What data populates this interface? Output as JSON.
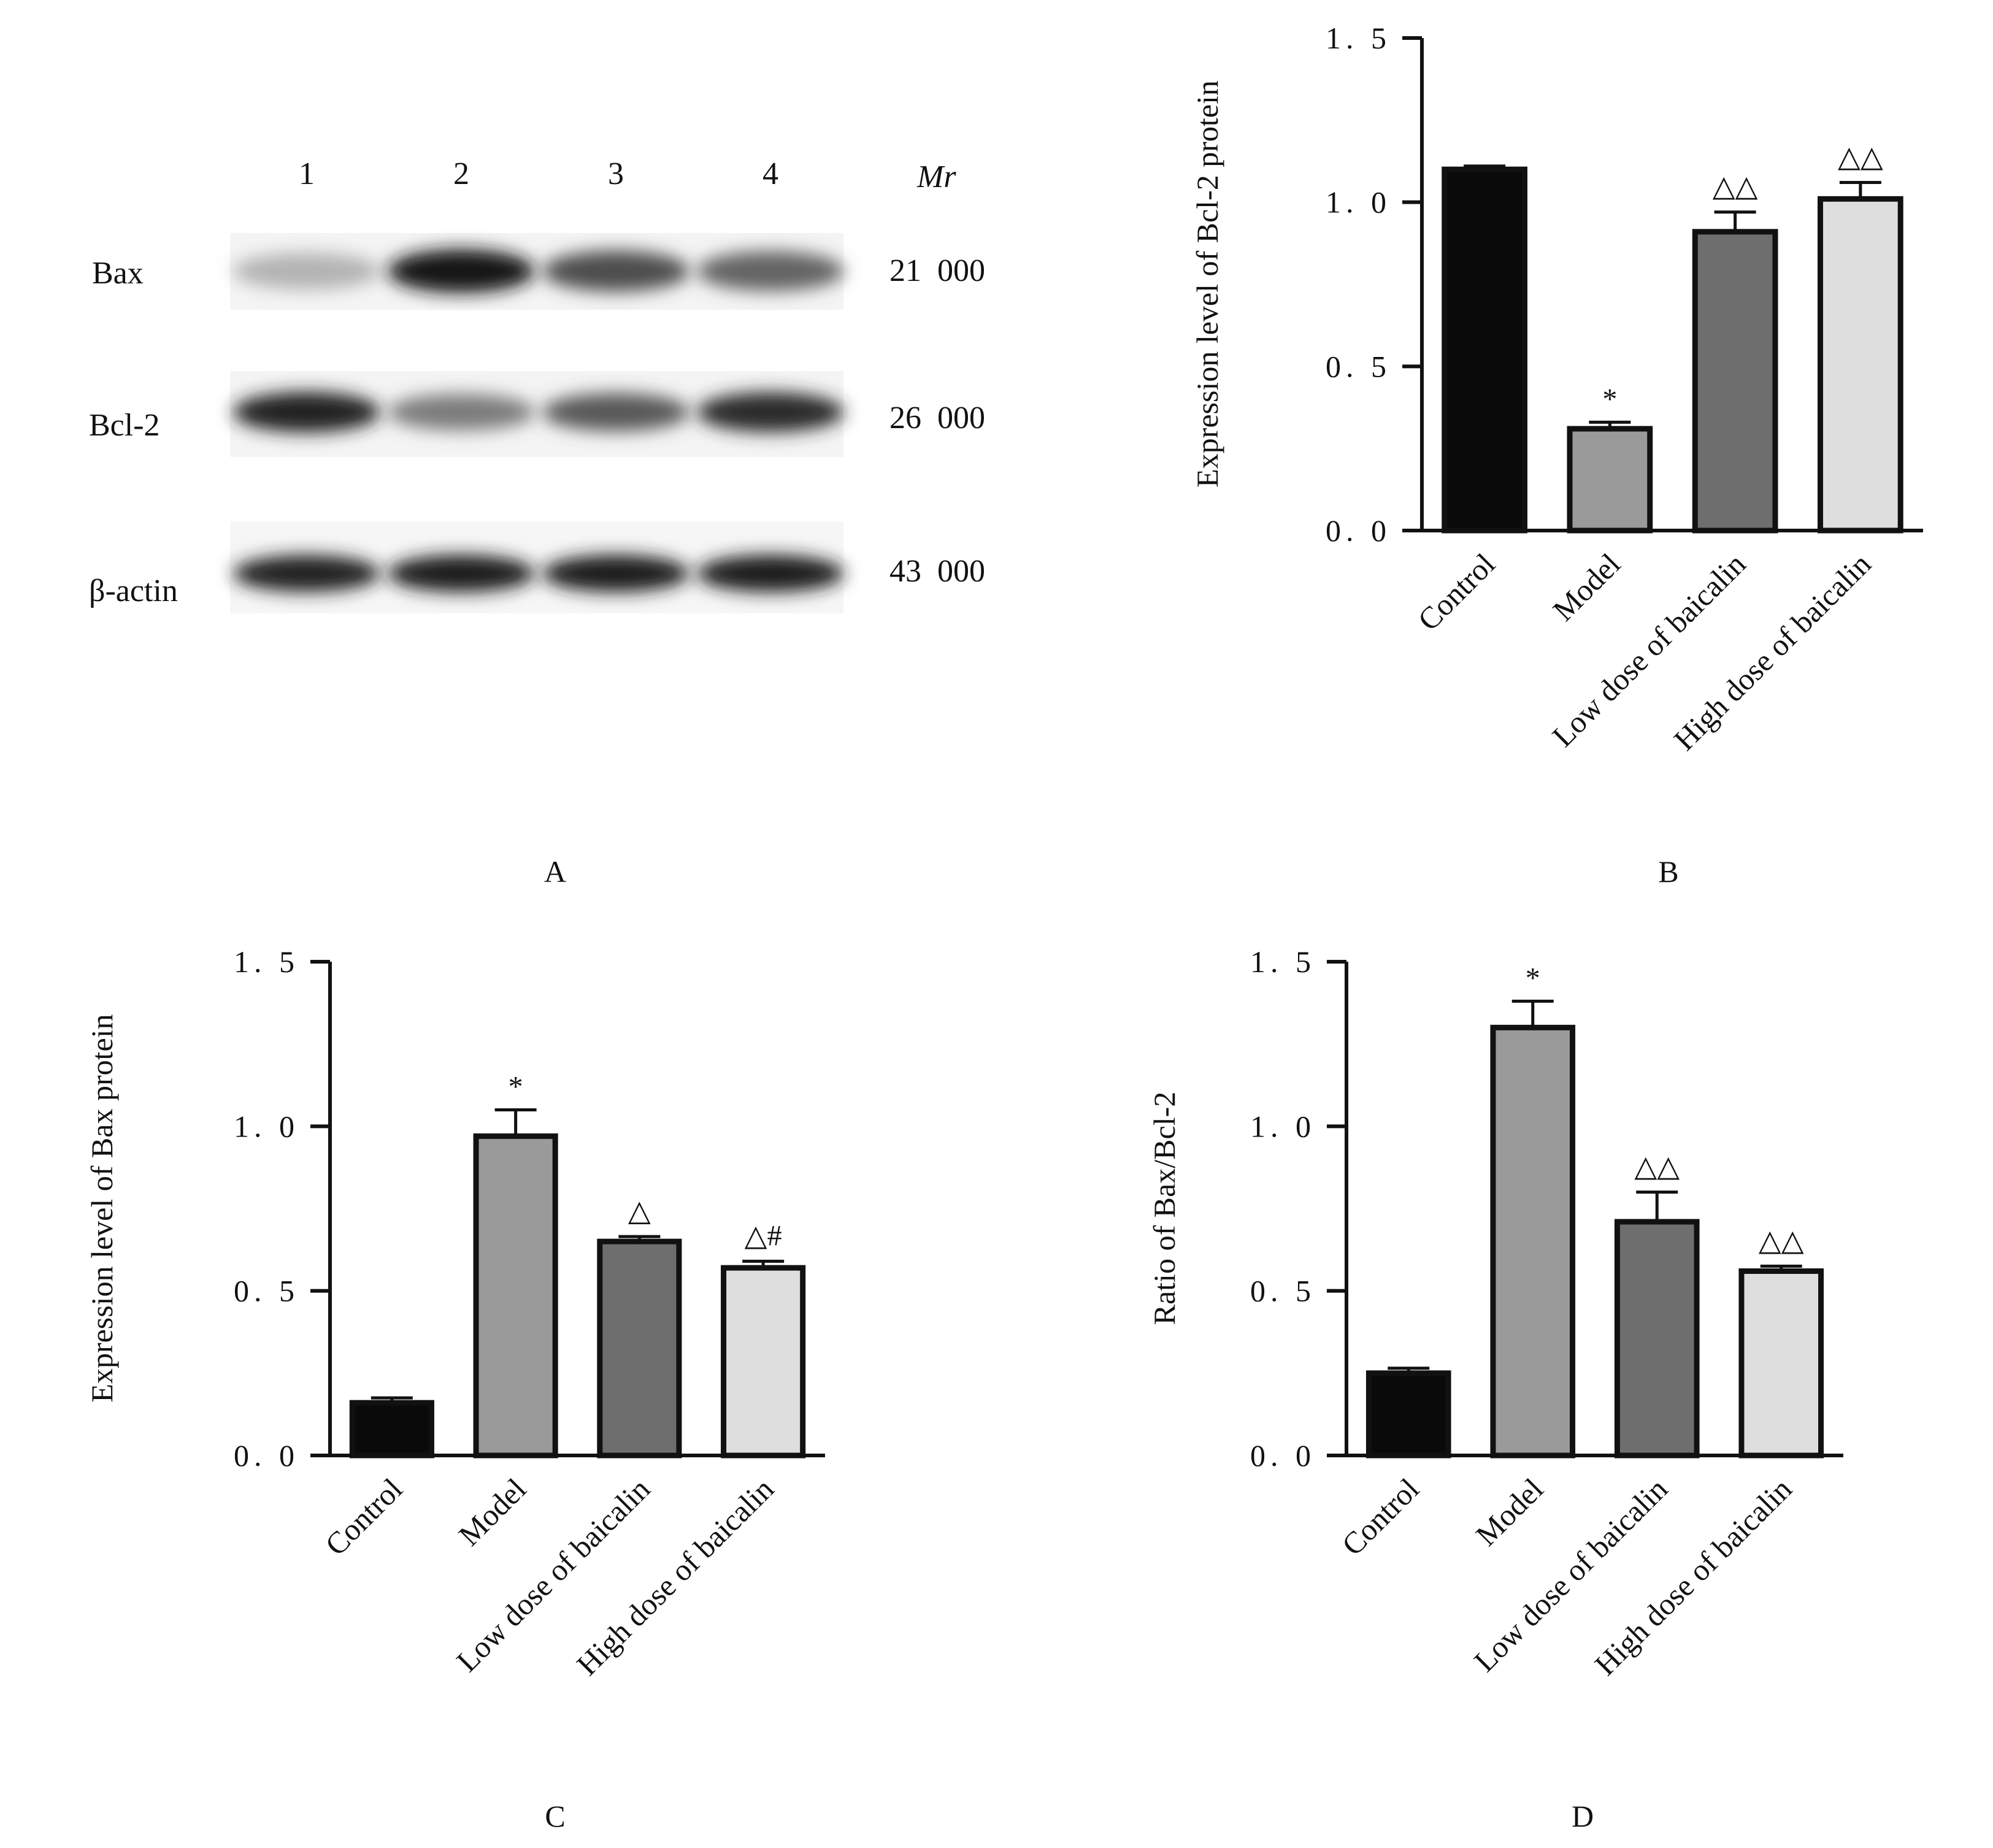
{
  "figure": {
    "panel_labels": [
      "A",
      "B",
      "C",
      "D"
    ]
  },
  "western_blot": {
    "lane_numbers": [
      "1",
      "2",
      "3",
      "4"
    ],
    "mr_header": "Mr",
    "rows": [
      {
        "protein": "Bax",
        "mr": "21  000",
        "intensities": [
          0.25,
          0.95,
          0.7,
          0.6
        ]
      },
      {
        "protein": "Bcl-2",
        "mr": "26  000",
        "intensities": [
          0.9,
          0.5,
          0.65,
          0.85
        ]
      },
      {
        "protein": "β-actin",
        "mr": "43  000",
        "intensities": [
          0.9,
          0.92,
          0.92,
          0.92
        ]
      }
    ]
  },
  "chart_data": [
    {
      "panel": "B",
      "type": "bar",
      "ylabel": "Expression level of  Bcl-2 protein",
      "xlabel": "",
      "title": "",
      "ylim": [
        0,
        1.5
      ],
      "yticks": [
        "0. 0",
        "0. 5",
        "1. 0",
        "1. 5"
      ],
      "categories": [
        "Control",
        "Model",
        "Low dose of baicalin",
        "High dose of baicalin"
      ],
      "values": [
        1.1,
        0.31,
        0.91,
        1.01
      ],
      "errors": [
        0.01,
        0.02,
        0.06,
        0.05
      ],
      "annotations": [
        "",
        "*",
        "△△",
        "△△"
      ],
      "colors": [
        "#0a0a0a",
        "#9a9a9a",
        "#6e6e6e",
        "#dedede"
      ],
      "grid": false
    },
    {
      "panel": "C",
      "type": "bar",
      "ylabel": "Expression level of Bax protein",
      "xlabel": "",
      "title": "",
      "ylim": [
        0,
        1.5
      ],
      "yticks": [
        "0. 0",
        "0. 5",
        "1. 0",
        "1. 5"
      ],
      "categories": [
        "Control",
        "Model",
        "Low dose of baicalin",
        "High dose of baicalin"
      ],
      "values": [
        0.16,
        0.97,
        0.65,
        0.57
      ],
      "errors": [
        0.015,
        0.08,
        0.015,
        0.02
      ],
      "annotations": [
        "",
        "*",
        "△",
        "△#"
      ],
      "colors": [
        "#0a0a0a",
        "#9a9a9a",
        "#6e6e6e",
        "#dedede"
      ],
      "grid": false
    },
    {
      "panel": "D",
      "type": "bar",
      "ylabel": "Ratio of Bax/Bcl-2",
      "xlabel": "",
      "title": "",
      "ylim": [
        0,
        1.5
      ],
      "yticks": [
        "0. 0",
        "0. 5",
        "1. 0",
        "1. 5"
      ],
      "categories": [
        "Control",
        "Model",
        "Low dose of baicalin",
        "High dose of baicalin"
      ],
      "values": [
        0.25,
        1.3,
        0.71,
        0.56
      ],
      "errors": [
        0.015,
        0.08,
        0.09,
        0.015
      ],
      "annotations": [
        "",
        "*",
        "△△",
        "△△"
      ],
      "colors": [
        "#0a0a0a",
        "#9a9a9a",
        "#6e6e6e",
        "#dedede"
      ],
      "grid": false
    }
  ]
}
